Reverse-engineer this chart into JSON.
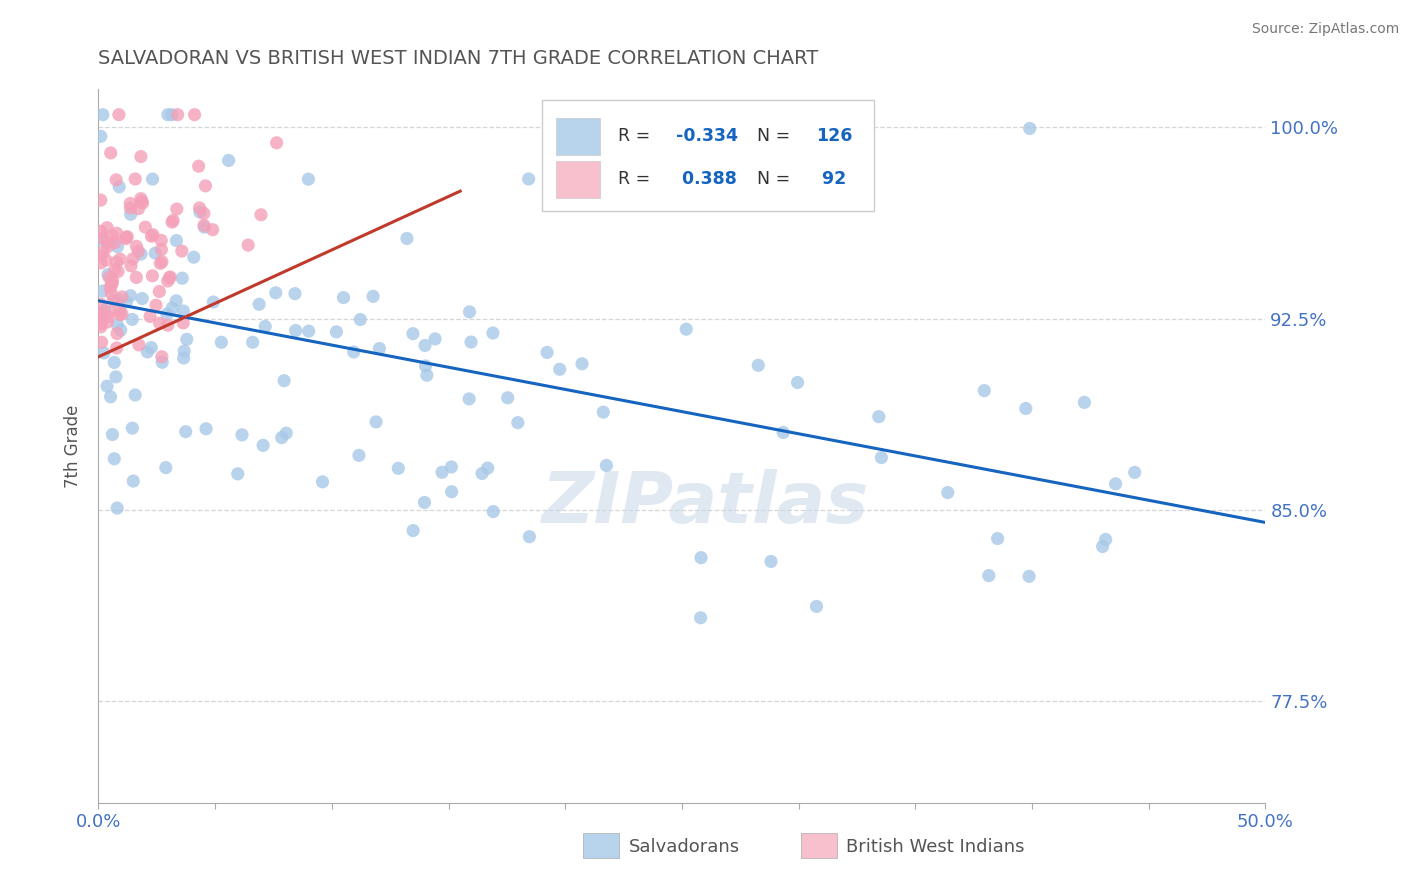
{
  "title": "SALVADORAN VS BRITISH WEST INDIAN 7TH GRADE CORRELATION CHART",
  "source": "Source: ZipAtlas.com",
  "ylabel_label": "7th Grade",
  "xlim": [
    0.0,
    0.5
  ],
  "ylim": [
    0.735,
    1.015
  ],
  "ytick_vals": [
    0.775,
    0.85,
    0.925,
    1.0
  ],
  "ytick_labels": [
    "77.5%",
    "85.0%",
    "92.5%",
    "100.0%"
  ],
  "blue_R": -0.334,
  "blue_N": 126,
  "pink_R": 0.388,
  "pink_N": 92,
  "blue_color": "#a8c8e8",
  "pink_color": "#f4a0b8",
  "blue_edge_color": "#a8c8e8",
  "pink_edge_color": "#f4a0b8",
  "blue_line_color": "#1565c0",
  "pink_line_color": "#c0392b",
  "blue_legend_color": "#b8d4ec",
  "pink_legend_color": "#f8c0cc",
  "watermark_color": "#c8d8e8",
  "watermark_text": "ZIPatlas",
  "grid_color": "#cccccc",
  "title_color": "#555555",
  "axis_color": "#aaaaaa",
  "tick_label_color_blue": "#4472c4",
  "bottom_label_color": "#555555",
  "legend_text_blue": "R = -0.334   N = 126",
  "legend_text_pink": "R =  0.388   N =  92",
  "blue_trend_x": [
    0.0,
    0.5
  ],
  "blue_trend_y": [
    0.932,
    0.845
  ],
  "pink_trend_x": [
    0.0,
    0.155
  ],
  "pink_trend_y": [
    0.91,
    0.975
  ]
}
